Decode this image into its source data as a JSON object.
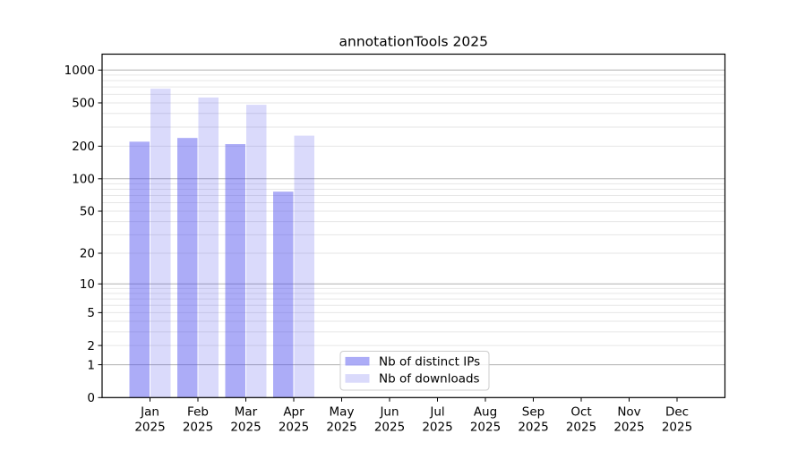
{
  "figure": {
    "background": "#ffffff"
  },
  "chart_data": {
    "type": "bar",
    "title": "annotationTools 2025",
    "categories": [
      "Jan",
      "Feb",
      "Mar",
      "Apr",
      "May",
      "Jun",
      "Jul",
      "Aug",
      "Sep",
      "Oct",
      "Nov",
      "Dec"
    ],
    "category_year_line": "2025",
    "series": [
      {
        "name": "Nb of distinct IPs",
        "color": "rgba(82,82,238,0.48)",
        "values": [
          220,
          238,
          209,
          76,
          0,
          0,
          0,
          0,
          0,
          0,
          0,
          0
        ]
      },
      {
        "name": "Nb of downloads",
        "color": "rgba(82,82,238,0.21)",
        "values": [
          675,
          560,
          480,
          250,
          0,
          0,
          0,
          0,
          0,
          0,
          0,
          0
        ]
      }
    ],
    "y_axis": {
      "scale": "log1p",
      "tick_labels": [
        0,
        1,
        2,
        5,
        10,
        20,
        50,
        100,
        200,
        500,
        1000
      ],
      "major_gridlines": [
        1,
        10,
        100,
        1000
      ],
      "minor_gridlines": [
        2,
        3,
        4,
        5,
        6,
        7,
        8,
        9,
        20,
        30,
        40,
        50,
        60,
        70,
        80,
        90,
        200,
        300,
        400,
        500,
        600,
        700,
        800,
        900
      ],
      "top_tick_value": 1000
    },
    "legend": {
      "entries": [
        "Nb of distinct IPs",
        "Nb of downloads"
      ],
      "position": "lower-center-inside"
    },
    "grid": true,
    "colors": {
      "major_grid": "#b0b0b0",
      "minor_grid": "#e6e6e6",
      "axis": "#000000",
      "legend_border": "#cccccc",
      "legend_bg_alpha": 0.8
    }
  }
}
